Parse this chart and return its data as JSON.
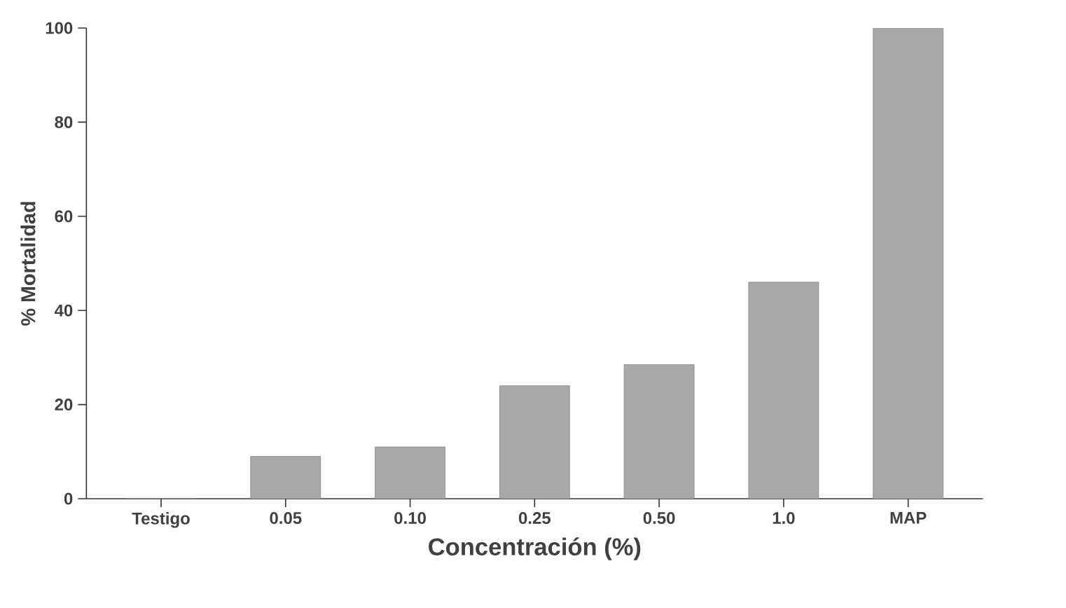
{
  "chart_data": {
    "type": "bar",
    "xlabel": "Concentración (%)",
    "ylabel": "% Mortalidad",
    "categories": [
      "Testigo",
      "0.05",
      "0.10",
      "0.25",
      "0.50",
      "1.0",
      "MAP"
    ],
    "values": [
      0,
      9,
      11,
      24,
      28.5,
      46,
      100
    ],
    "color": "#a8a8a8",
    "ylim": [
      0,
      100
    ],
    "yticks": [
      0,
      20,
      40,
      60,
      80,
      100
    ],
    "grid": false
  }
}
